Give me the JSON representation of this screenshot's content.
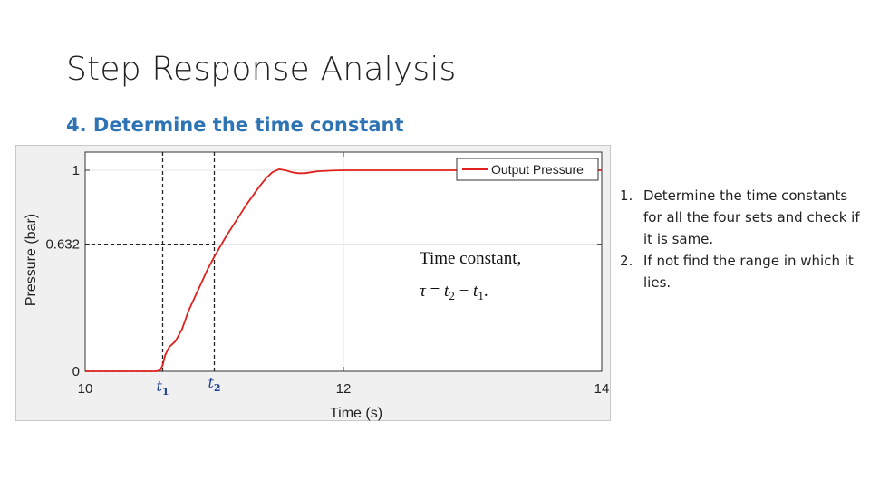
{
  "slide": {
    "title": "Step Response Analysis",
    "subtitle": "4. Determine the time constant"
  },
  "notes": [
    {
      "number": "1.",
      "text": "Determine the time constants for all the four sets and check if it is same."
    },
    {
      "number": "2.",
      "text": "If not find the range in which it lies."
    }
  ],
  "chart_data": {
    "type": "line",
    "xlabel": "Time (s)",
    "ylabel": "Pressure (bar)",
    "xlim": [
      10,
      14
    ],
    "ylim": [
      0,
      1.09
    ],
    "x_ticks": [
      {
        "value": 10,
        "label": "10"
      },
      {
        "value": 12,
        "label": "12"
      },
      {
        "value": 14,
        "label": "14"
      }
    ],
    "y_ticks": [
      {
        "value": 0,
        "label": "0"
      },
      {
        "value": 0.632,
        "label": "0.632"
      },
      {
        "value": 1,
        "label": "1"
      }
    ],
    "grid": true,
    "legend": {
      "position": "top-right",
      "entries": [
        "Output Pressure"
      ]
    },
    "series": [
      {
        "name": "Output Pressure",
        "color": "#e0201b",
        "points": [
          [
            10.0,
            0.0
          ],
          [
            10.55,
            0.0
          ],
          [
            10.58,
            0.005
          ],
          [
            10.6,
            0.03
          ],
          [
            10.62,
            0.08
          ],
          [
            10.65,
            0.12
          ],
          [
            10.7,
            0.15
          ],
          [
            10.75,
            0.21
          ],
          [
            10.8,
            0.3
          ],
          [
            10.85,
            0.37
          ],
          [
            10.9,
            0.44
          ],
          [
            10.95,
            0.51
          ],
          [
            11.0,
            0.57
          ],
          [
            11.05,
            0.625
          ],
          [
            11.1,
            0.68
          ],
          [
            11.15,
            0.73
          ],
          [
            11.2,
            0.78
          ],
          [
            11.25,
            0.83
          ],
          [
            11.3,
            0.875
          ],
          [
            11.35,
            0.92
          ],
          [
            11.4,
            0.96
          ],
          [
            11.45,
            0.99
          ],
          [
            11.5,
            1.005
          ],
          [
            11.55,
            1.0
          ],
          [
            11.6,
            0.99
          ],
          [
            11.65,
            0.985
          ],
          [
            11.7,
            0.985
          ],
          [
            11.75,
            0.99
          ],
          [
            11.8,
            0.995
          ],
          [
            11.9,
            0.998
          ],
          [
            12.0,
            1.0
          ],
          [
            12.5,
            1.0
          ],
          [
            13.0,
            1.0
          ],
          [
            13.5,
            1.0
          ],
          [
            14.0,
            1.0
          ]
        ]
      }
    ],
    "markers": {
      "t1": {
        "label": "t",
        "subscript": "1",
        "x": 10.6
      },
      "t2": {
        "label": "t",
        "subscript": "2",
        "x": 11.0
      },
      "level": 0.632
    },
    "annotation": {
      "line1": "Time constant,",
      "tau": "τ",
      "eq": "=",
      "t2": "t",
      "t2_sub": "2",
      "minus": "−",
      "t1": "t",
      "t1_sub": "1",
      "end": "."
    },
    "colors": {
      "axis_marker_labels": "#1f3c99"
    }
  }
}
